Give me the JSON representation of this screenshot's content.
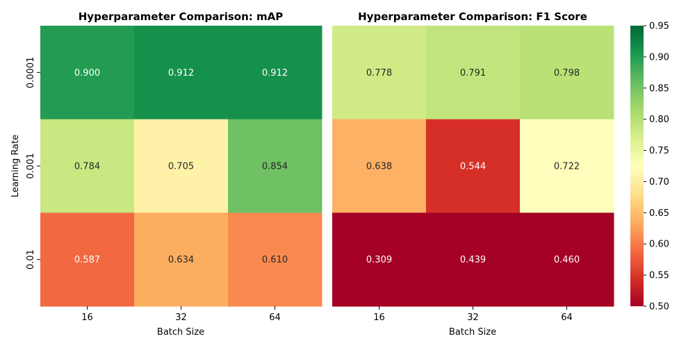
{
  "chart_data": [
    {
      "type": "heatmap",
      "title": "Hyperparameter Comparison: mAP",
      "xlabel": "Batch Size",
      "ylabel": "Learning Rate",
      "x_categories": [
        "16",
        "32",
        "64"
      ],
      "y_categories": [
        "0.0001",
        "0.001",
        "0.01"
      ],
      "values": [
        [
          0.9,
          0.912,
          0.912
        ],
        [
          0.784,
          0.705,
          0.854
        ],
        [
          0.587,
          0.634,
          0.61
        ]
      ],
      "value_labels": [
        [
          "0.900",
          "0.912",
          "0.912"
        ],
        [
          "0.784",
          "0.705",
          "0.854"
        ],
        [
          "0.587",
          "0.634",
          "0.610"
        ]
      ]
    },
    {
      "type": "heatmap",
      "title": "Hyperparameter Comparison: F1 Score",
      "xlabel": "Batch Size",
      "ylabel": "",
      "x_categories": [
        "16",
        "32",
        "64"
      ],
      "y_categories": [
        "0.0001",
        "0.001",
        "0.01"
      ],
      "values": [
        [
          0.778,
          0.791,
          0.798
        ],
        [
          0.638,
          0.544,
          0.722
        ],
        [
          0.309,
          0.439,
          0.46
        ]
      ],
      "value_labels": [
        [
          "0.778",
          "0.791",
          "0.798"
        ],
        [
          "0.638",
          "0.544",
          "0.722"
        ],
        [
          "0.309",
          "0.439",
          "0.460"
        ]
      ]
    }
  ],
  "colorbar": {
    "colormap": "RdYlGn",
    "vmin": 0.5,
    "vmax": 0.95,
    "ticks": [
      "0.50",
      "0.55",
      "0.60",
      "0.65",
      "0.70",
      "0.75",
      "0.80",
      "0.85",
      "0.90",
      "0.95"
    ]
  }
}
